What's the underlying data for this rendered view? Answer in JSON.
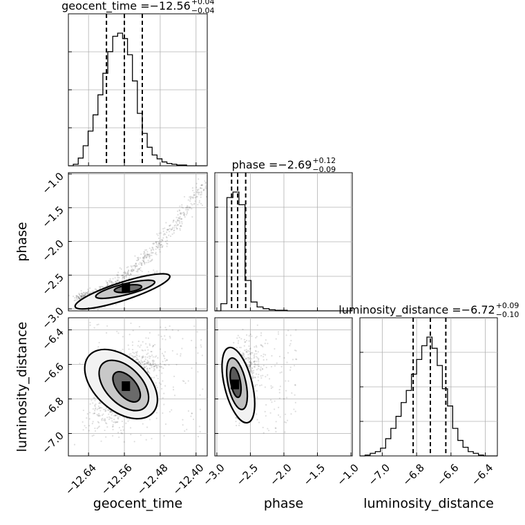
{
  "chart_data": {
    "type": "corner",
    "parameters": [
      "geocent_time",
      "phase",
      "luminosity_distance"
    ],
    "summaries": [
      {
        "parameter": "geocent_time",
        "title_prefix": "geocent_time = ",
        "median_text": "−12.56",
        "plus_text": "+0.04",
        "minus_text": "−0.04",
        "median": -12.56,
        "lower": -12.6,
        "upper": -12.52
      },
      {
        "parameter": "phase",
        "title_prefix": "phase = ",
        "median_text": "−2.69",
        "plus_text": "+0.12",
        "minus_text": "−0.09",
        "median": -2.69,
        "lower": -2.78,
        "upper": -2.57
      },
      {
        "parameter": "luminosity_distance",
        "title_prefix": "luminosity_distance = ",
        "median_text": "−6.72",
        "plus_text": "+0.09",
        "minus_text": "−0.10",
        "median": -6.72,
        "lower": -6.82,
        "upper": -6.63
      }
    ],
    "axes": {
      "geocent_time": {
        "range": [
          -12.685,
          -12.375
        ],
        "ticks": [
          -12.64,
          -12.56,
          -12.48,
          -12.4
        ],
        "tick_labels": [
          "−12.64",
          "−12.56",
          "−12.48",
          "−12.40"
        ]
      },
      "phase": {
        "range": [
          -3.03,
          -0.98
        ],
        "x_ticks": [
          -3.0,
          -2.5,
          -2.0,
          -1.5,
          -1.0
        ],
        "x_tick_labels": [
          "−3.0",
          "−2.5",
          "−2.0",
          "−1.5",
          "−1.0"
        ],
        "y_ticks": [
          -1.0,
          -1.5,
          -2.0,
          -2.5,
          -3.0
        ],
        "y_tick_labels": [
          "−1.0",
          "−1.5",
          "−2.0",
          "−2.5",
          "−3.0"
        ]
      },
      "luminosity_distance": {
        "range": [
          -7.13,
          -6.33
        ],
        "x_ticks": [
          -7.0,
          -6.8,
          -6.6,
          -6.4
        ],
        "x_tick_labels": [
          "−7.0",
          "−6.8",
          "−6.6",
          "−6.4"
        ],
        "y_ticks": [
          -6.4,
          -6.6,
          -6.8,
          -7.0
        ],
        "y_tick_labels": [
          "−6.4",
          "−6.6",
          "−6.8",
          "−7.0"
        ]
      }
    },
    "histograms": {
      "geocent_time": {
        "edges": [
          -12.685,
          -12.674,
          -12.663,
          -12.652,
          -12.641,
          -12.63,
          -12.619,
          -12.608,
          -12.597,
          -12.586,
          -12.575,
          -12.564,
          -12.553,
          -12.542,
          -12.531,
          -12.52,
          -12.509,
          -12.498,
          -12.487,
          -12.476,
          -12.465,
          -12.454,
          -12.443,
          -12.432,
          -12.421,
          -12.41,
          -12.399,
          -12.388,
          -12.377
        ],
        "counts": [
          0,
          2,
          10,
          26,
          45,
          66,
          92,
          120,
          148,
          168,
          172,
          165,
          144,
          110,
          68,
          42,
          24,
          14,
          9,
          5,
          3,
          2,
          1,
          1,
          0,
          0,
          0,
          0
        ]
      },
      "phase": {
        "edges": [
          -3.03,
          -2.94,
          -2.85,
          -2.76,
          -2.67,
          -2.58,
          -2.49,
          -2.4,
          -2.31,
          -2.22,
          -2.13,
          -2.04,
          -1.95,
          -1.86,
          -1.77,
          -1.68,
          -1.59,
          -1.5,
          -1.41,
          -1.32,
          -1.23,
          -1.14,
          -1.05,
          -0.98
        ],
        "counts": [
          0,
          13,
          205,
          215,
          192,
          55,
          16,
          7,
          4,
          2,
          1,
          1,
          0,
          0,
          0,
          0,
          0,
          0,
          0,
          0,
          0,
          0,
          0
        ]
      },
      "luminosity_distance": {
        "edges": [
          -7.13,
          -7.1,
          -7.07,
          -7.04,
          -7.01,
          -6.98,
          -6.95,
          -6.92,
          -6.89,
          -6.86,
          -6.83,
          -6.8,
          -6.77,
          -6.74,
          -6.71,
          -6.68,
          -6.65,
          -6.62,
          -6.59,
          -6.56,
          -6.53,
          -6.5,
          -6.47,
          -6.44,
          -6.41,
          -6.38,
          -6.35,
          -6.33
        ],
        "counts": [
          0,
          1,
          3,
          5,
          9,
          20,
          32,
          46,
          62,
          76,
          95,
          112,
          128,
          138,
          125,
          105,
          78,
          58,
          32,
          18,
          10,
          5,
          3,
          1,
          0,
          0,
          0
        ]
      }
    },
    "density_peaks": [
      {
        "x_parameter": "geocent_time",
        "y_parameter": "phase",
        "x": -12.555,
        "y": -2.7
      },
      {
        "x_parameter": "geocent_time",
        "y_parameter": "luminosity_distance",
        "x": -12.555,
        "y": -6.73
      },
      {
        "x_parameter": "phase",
        "y_parameter": "luminosity_distance",
        "x": -2.72,
        "y": -6.72
      }
    ],
    "grid": true
  }
}
